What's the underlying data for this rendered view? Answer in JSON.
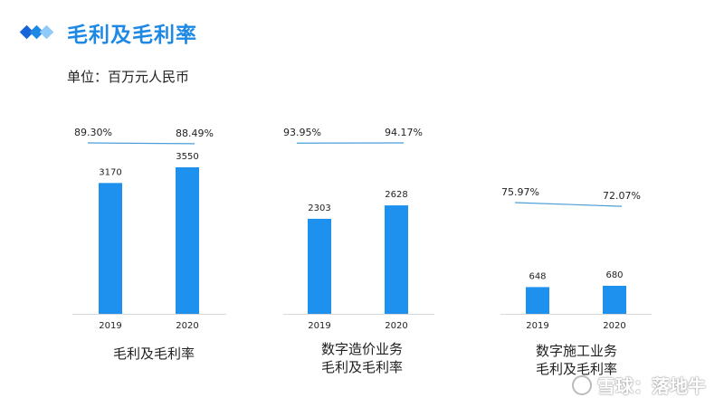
{
  "header": {
    "title": "毛利及毛利率"
  },
  "unit_label": "单位：百万元人民币",
  "watermark": "雪球：落地牛",
  "colors": {
    "accent": "#1e88e5",
    "bar": "#1e90ee",
    "line": "#4a9ed8"
  },
  "chart_data": [
    {
      "type": "bar",
      "title_lines": [
        "毛利及毛利率"
      ],
      "categories": [
        "2019",
        "2020"
      ],
      "series": [
        {
          "values": [
            3170,
            3550
          ]
        },
        {
          "values": [
            89.3,
            88.49
          ],
          "labels": [
            "89.30%",
            "88.49%"
          ]
        }
      ],
      "value_labels": [
        "3170",
        "3550"
      ],
      "ylim": [
        0,
        4000
      ]
    },
    {
      "type": "bar",
      "title_lines": [
        "数字造价业务",
        "毛利及毛利率"
      ],
      "categories": [
        "2019",
        "2020"
      ],
      "series": [
        {
          "values": [
            2303,
            2628
          ]
        },
        {
          "values": [
            93.95,
            94.17
          ],
          "labels": [
            "93.95%",
            "94.17%"
          ]
        }
      ],
      "value_labels": [
        "2303",
        "2628"
      ],
      "ylim": [
        0,
        4000
      ]
    },
    {
      "type": "bar",
      "title_lines": [
        "数字施工业务",
        "毛利及毛利率"
      ],
      "categories": [
        "2019",
        "2020"
      ],
      "series": [
        {
          "values": [
            648,
            680
          ]
        },
        {
          "values": [
            75.97,
            72.07
          ],
          "labels": [
            "75.97%",
            "72.07%"
          ]
        }
      ],
      "value_labels": [
        "648",
        "680"
      ],
      "ylim": [
        0,
        4000
      ]
    }
  ]
}
